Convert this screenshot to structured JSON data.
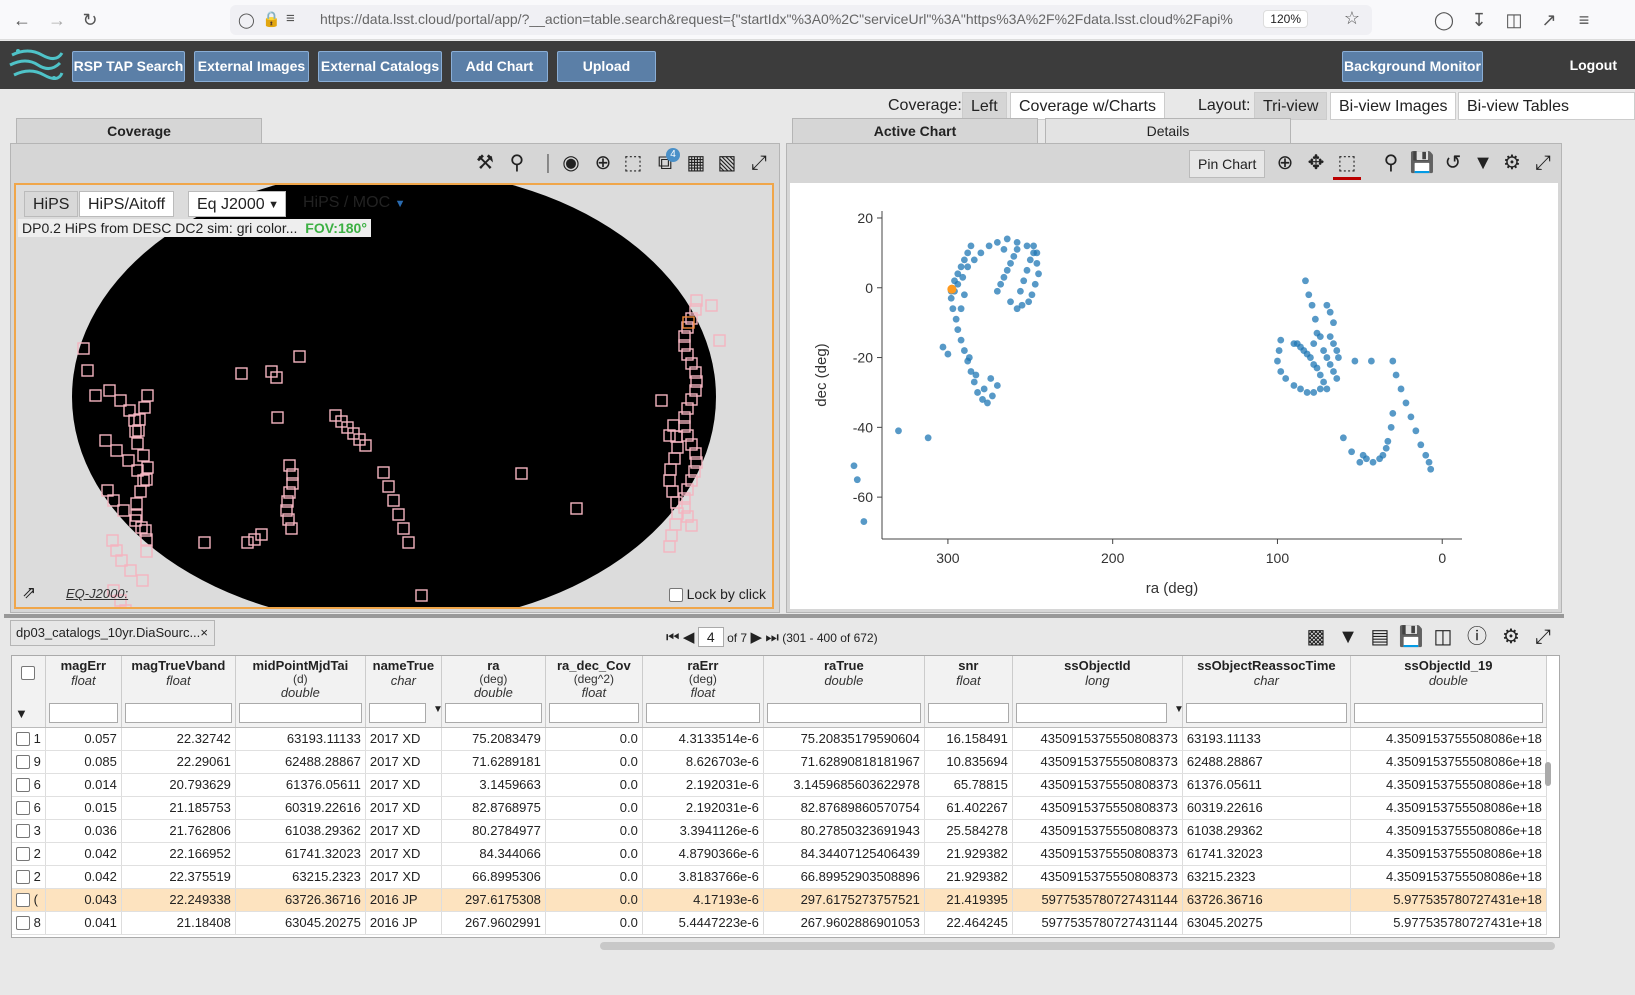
{
  "browser": {
    "url": "https://data.lsst.cloud/portal/app/?__action=table.search&request={\"startIdx\"%3A0%2C\"serviceUrl\"%3A\"https%3A%2F%2Fdata.lsst.cloud%2Fapi%",
    "zoom": "120%"
  },
  "toolbar": {
    "buttons": [
      "RSP TAP Search",
      "External Images",
      "External Catalogs",
      "Add Chart",
      "Upload"
    ],
    "background_monitor": "Background Monitor",
    "logout": "Logout"
  },
  "layout_row": {
    "coverage_label": "Coverage:",
    "coverage_options": [
      "Left",
      "Coverage w/Charts"
    ],
    "layout_label": "Layout:",
    "layout_options": [
      "Tri-view",
      "Bi-view Images",
      "Bi-view Tables"
    ]
  },
  "coverage_panel": {
    "tab": "Coverage",
    "view_options": [
      "HiPS",
      "HiPS/Aitoff"
    ],
    "coord_select": "Eq J2000",
    "hips_moc": "HiPS / MOC",
    "hips_label": "DP0.2 HiPS from DESC DC2 sim: gri color...",
    "fov": "FOV:180°",
    "coord_readout": "EQ-J2000:",
    "lock_label": "Lock by click",
    "layer_badge": "4"
  },
  "chart_panel": {
    "tabs": [
      "Active Chart",
      "Details"
    ],
    "pin_label": "Pin Chart"
  },
  "chart_data": {
    "type": "scatter",
    "xlabel": "ra (deg)",
    "ylabel": "dec (deg)",
    "xlim": [
      340,
      -12
    ],
    "ylim": [
      -72,
      22
    ],
    "x_ticks": [
      300,
      200,
      100,
      0
    ],
    "y_ticks": [
      20,
      0,
      -20,
      -40,
      -60
    ],
    "highlight": {
      "x": 297.6,
      "y": -0.4
    },
    "points": [
      [
        264,
        14
      ],
      [
        258,
        13
      ],
      [
        252,
        12
      ],
      [
        248,
        10
      ],
      [
        246,
        7
      ],
      [
        245,
        4
      ],
      [
        247,
        1
      ],
      [
        249,
        -2
      ],
      [
        251,
        -4
      ],
      [
        255,
        -5
      ],
      [
        258,
        -6
      ],
      [
        262,
        -4
      ],
      [
        266,
        11
      ],
      [
        270,
        13
      ],
      [
        275,
        12
      ],
      [
        280,
        10
      ],
      [
        284,
        8
      ],
      [
        288,
        6
      ],
      [
        291,
        3
      ],
      [
        294,
        1
      ],
      [
        296,
        -1
      ],
      [
        298,
        -3
      ],
      [
        297,
        -6
      ],
      [
        295,
        -9
      ],
      [
        294,
        -12
      ],
      [
        292,
        -15
      ],
      [
        290,
        -18
      ],
      [
        288,
        -21
      ],
      [
        286,
        -24
      ],
      [
        284,
        -27
      ],
      [
        282,
        -30
      ],
      [
        279,
        -32
      ],
      [
        276,
        -33
      ],
      [
        273,
        -31
      ],
      [
        270,
        -28
      ],
      [
        250,
        8
      ],
      [
        252,
        5
      ],
      [
        254,
        2
      ],
      [
        256,
        -1
      ],
      [
        258,
        11
      ],
      [
        260,
        9
      ],
      [
        262,
        7
      ],
      [
        264,
        5
      ],
      [
        266,
        3
      ],
      [
        268,
        1
      ],
      [
        270,
        -1
      ],
      [
        246,
        10
      ],
      [
        248,
        12
      ],
      [
        303,
        -17
      ],
      [
        300,
        -19
      ],
      [
        287,
        -20
      ],
      [
        283,
        -25
      ],
      [
        278,
        -29
      ],
      [
        274,
        -26
      ],
      [
        330,
        -41
      ],
      [
        312,
        -43
      ],
      [
        357,
        -51
      ],
      [
        355,
        -55
      ],
      [
        351,
        -67
      ],
      [
        298,
        -1
      ],
      [
        296,
        2
      ],
      [
        294,
        4
      ],
      [
        292,
        6
      ],
      [
        290,
        8
      ],
      [
        288,
        10
      ],
      [
        286,
        12
      ],
      [
        292,
        -6
      ],
      [
        290,
        -2
      ],
      [
        83,
        2
      ],
      [
        81,
        -2
      ],
      [
        79,
        -5
      ],
      [
        77,
        -9
      ],
      [
        76,
        -13
      ],
      [
        78,
        -16
      ],
      [
        74,
        -14
      ],
      [
        72,
        -18
      ],
      [
        70,
        -20
      ],
      [
        68,
        -22
      ],
      [
        66,
        -24
      ],
      [
        64,
        -26
      ],
      [
        70,
        -29
      ],
      [
        74,
        -29
      ],
      [
        78,
        -30
      ],
      [
        82,
        -30
      ],
      [
        86,
        -29
      ],
      [
        90,
        -28
      ],
      [
        95,
        -26
      ],
      [
        98,
        -24
      ],
      [
        100,
        -21
      ],
      [
        99,
        -18
      ],
      [
        98,
        -15
      ],
      [
        72,
        -27
      ],
      [
        74,
        -25
      ],
      [
        76,
        -23
      ],
      [
        78,
        -22
      ],
      [
        80,
        -20
      ],
      [
        82,
        -19
      ],
      [
        84,
        -18
      ],
      [
        86,
        -17
      ],
      [
        88,
        -16
      ],
      [
        90,
        -16
      ],
      [
        68,
        -14
      ],
      [
        66,
        -16
      ],
      [
        64,
        -18
      ],
      [
        63,
        -20
      ],
      [
        66,
        -10
      ],
      [
        68,
        -7
      ],
      [
        70,
        -5
      ],
      [
        53,
        -21
      ],
      [
        43,
        -21
      ],
      [
        30,
        -21
      ],
      [
        28,
        -25
      ],
      [
        25,
        -29
      ],
      [
        22,
        -33
      ],
      [
        19,
        -37
      ],
      [
        16,
        -41
      ],
      [
        13,
        -45
      ],
      [
        10,
        -48
      ],
      [
        8,
        -50
      ],
      [
        7,
        -52
      ],
      [
        30,
        -36
      ],
      [
        31,
        -40
      ],
      [
        33,
        -44
      ],
      [
        34,
        -46
      ],
      [
        36,
        -48
      ],
      [
        38,
        -49
      ],
      [
        42,
        -50
      ],
      [
        46,
        -49
      ],
      [
        48,
        -48
      ],
      [
        60,
        -43
      ],
      [
        55,
        -47
      ],
      [
        50,
        -50
      ]
    ]
  },
  "table": {
    "tab_title": "dp03_catalogs_10yr.DiaSourc...",
    "page_input": "4",
    "page_of": "of 7",
    "range": "(301 - 400 of 672)",
    "columns": [
      {
        "name": "",
        "type": "",
        "unit": ""
      },
      {
        "name": "magErr",
        "type": "float",
        "unit": ""
      },
      {
        "name": "magTrueVband",
        "type": "float",
        "unit": ""
      },
      {
        "name": "midPointMjdTai",
        "type": "double",
        "unit": "(d)"
      },
      {
        "name": "nameTrue",
        "type": "char",
        "unit": ""
      },
      {
        "name": "ra",
        "type": "double",
        "unit": "(deg)"
      },
      {
        "name": "ra_dec_Cov",
        "type": "float",
        "unit": "(deg^2)"
      },
      {
        "name": "raErr",
        "type": "float",
        "unit": "(deg)"
      },
      {
        "name": "raTrue",
        "type": "double",
        "unit": ""
      },
      {
        "name": "snr",
        "type": "float",
        "unit": ""
      },
      {
        "name": "ssObjectId",
        "type": "long",
        "unit": ""
      },
      {
        "name": "ssObjectReassocTime",
        "type": "char",
        "unit": ""
      },
      {
        "name": "ssObjectId_19",
        "type": "double",
        "unit": ""
      }
    ],
    "rows": [
      [
        "1",
        "0.057",
        "22.32742",
        "63193.11133",
        "2017 XD",
        "75.2083479",
        "0.0",
        "4.3133514e-6",
        "75.20835179590604",
        "16.158491",
        "4350915375550808373",
        "63193.11133",
        "4.350915375550808​6e+18"
      ],
      [
        "9",
        "0.085",
        "22.29061",
        "62488.28867",
        "2017 XD",
        "71.6289181",
        "0.0",
        "8.626703e-6",
        "71.62890818181967",
        "10.835694",
        "4350915375550808373",
        "62488.28867",
        "4.3509153755508086e+18"
      ],
      [
        "6",
        "0.014",
        "20.793629",
        "61376.05611",
        "2017 XD",
        "3.1459663",
        "0.0",
        "2.192031e-6",
        "3.1459685603622978",
        "65.78815",
        "4350915375550808373",
        "61376.05611",
        "4.3509153755508086e+18"
      ],
      [
        "6",
        "0.015",
        "21.185753",
        "60319.22616",
        "2017 XD",
        "82.8768975",
        "0.0",
        "2.192031e-6",
        "82.87689860570754",
        "61.402267",
        "4350915375550808373",
        "60319.22616",
        "4.3509153755508086e+18"
      ],
      [
        "3",
        "0.036",
        "21.762806",
        "61038.29362",
        "2017 XD",
        "80.2784977",
        "0.0",
        "3.3941126e-6",
        "80.27850323691943",
        "25.584278",
        "4350915375550808373",
        "61038.29362",
        "4.3509153755508086e+18"
      ],
      [
        "2",
        "0.042",
        "22.166952",
        "61741.32023",
        "2017 XD",
        "84.344066",
        "0.0",
        "4.8790366e-6",
        "84.34407125406439",
        "21.929382",
        "4350915375550808373",
        "61741.32023",
        "4.3509153755508086e+18"
      ],
      [
        "2",
        "0.042",
        "22.375519",
        "63215.2323",
        "2017 XD",
        "66.8995306",
        "0.0",
        "3.8183766e-6",
        "66.89952903508896",
        "21.929382",
        "4350915375550808373",
        "63215.2323",
        "4.3509153755508086e+18"
      ],
      [
        "(",
        "0.043",
        "22.249338",
        "63726.36716",
        "2016 JP",
        "297.6175308",
        "0.0",
        "4.17193e-6",
        "297.6175273757521",
        "21.419395",
        "5977535780727431144",
        "63726.36716",
        "5.977535780727431e+18"
      ],
      [
        "8",
        "0.041",
        "21.18408",
        "63045.20275",
        "2016 JP",
        "267.9602991",
        "0.0",
        "5.4447223e-6",
        "267.9602886901053",
        "22.464245",
        "5977535780727431144",
        "63045.20275",
        "5.977535780727431e+18"
      ]
    ],
    "highlight_row": 7
  }
}
